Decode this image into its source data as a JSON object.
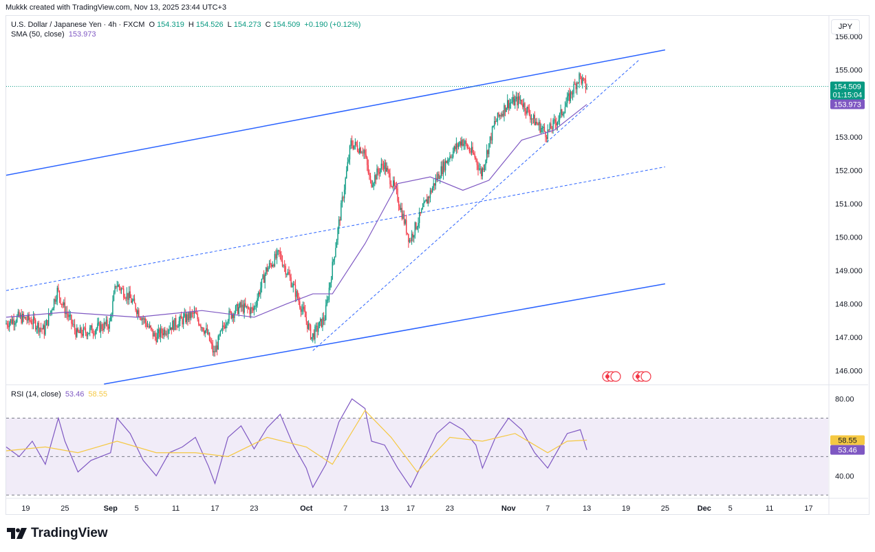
{
  "header": {
    "credit": "Mukkk created with TradingView.com, Nov 13, 2025 23:44 UTC+3"
  },
  "legend": {
    "symbol": "U.S. Dollar / Japanese Yen · 4h · FXCM",
    "o_label": "O",
    "o_value": "154.319",
    "h_label": "H",
    "h_value": "154.526",
    "l_label": "L",
    "l_value": "154.273",
    "c_label": "C",
    "c_value": "154.509",
    "change": "+0.190 (+0.12%)",
    "sma_label": "SMA (50, close)",
    "sma_value": "153.973",
    "rsi_label": "RSI (14, close)",
    "rsi_value": "53.46",
    "rsi_ma_value": "58.55"
  },
  "currency": "JPY",
  "price_badge": {
    "price": "154.509",
    "countdown": "01:15:04",
    "sma": "153.973"
  },
  "rsi_badges": {
    "ma": "58.55",
    "rsi": "53.46"
  },
  "footer": {
    "brand": "TradingView"
  },
  "colors": {
    "up": "#089981",
    "down": "#f23645",
    "sma": "#7e57c2",
    "trend": "#2962ff",
    "rsi": "#7e57c2",
    "rsi_ma": "#f5c842",
    "rsi_band": "#ede7f6"
  },
  "chart_data": [
    {
      "type": "candlestick",
      "yaxis": {
        "min": 145.6,
        "max": 156.6,
        "ticks": [
          "156.000",
          "155.000",
          "154.000",
          "153.000",
          "152.000",
          "151.000",
          "150.000",
          "149.000",
          "148.000",
          "147.000",
          "146.000"
        ],
        "tick_values": [
          156,
          155,
          154,
          153,
          152,
          151,
          150,
          149,
          148,
          147,
          146
        ]
      },
      "xaxis": {
        "start": "2025-08-16",
        "end": "2025-12-20",
        "ticks": [
          {
            "label": "19",
            "date": "2025-08-19"
          },
          {
            "label": "25",
            "date": "2025-08-25"
          },
          {
            "label": "Sep",
            "date": "2025-09-01"
          },
          {
            "label": "5",
            "date": "2025-09-05"
          },
          {
            "label": "11",
            "date": "2025-09-11"
          },
          {
            "label": "17",
            "date": "2025-09-17"
          },
          {
            "label": "23",
            "date": "2025-09-23"
          },
          {
            "label": "Oct",
            "date": "2025-10-01"
          },
          {
            "label": "7",
            "date": "2025-10-07"
          },
          {
            "label": "13",
            "date": "2025-10-13"
          },
          {
            "label": "17",
            "date": "2025-10-17"
          },
          {
            "label": "23",
            "date": "2025-10-23"
          },
          {
            "label": "Nov",
            "date": "2025-11-01"
          },
          {
            "label": "7",
            "date": "2025-11-07"
          },
          {
            "label": "13",
            "date": "2025-11-13"
          },
          {
            "label": "19",
            "date": "2025-11-19"
          },
          {
            "label": "25",
            "date": "2025-11-25"
          },
          {
            "label": "Dec",
            "date": "2025-12-01"
          },
          {
            "label": "5",
            "date": "2025-12-05"
          },
          {
            "label": "11",
            "date": "2025-12-11"
          },
          {
            "label": "17",
            "date": "2025-12-17"
          }
        ]
      },
      "price_path": [
        [
          "2025-08-16",
          147.4
        ],
        [
          "2025-08-18",
          147.6
        ],
        [
          "2025-08-20",
          147.5
        ],
        [
          "2025-08-22",
          147.2
        ],
        [
          "2025-08-24",
          148.4
        ],
        [
          "2025-08-25",
          147.9
        ],
        [
          "2025-08-27",
          147.1
        ],
        [
          "2025-08-29",
          147.2
        ],
        [
          "2025-09-01",
          147.4
        ],
        [
          "2025-09-02",
          148.6
        ],
        [
          "2025-09-04",
          148.2
        ],
        [
          "2025-09-06",
          147.6
        ],
        [
          "2025-09-08",
          147.0
        ],
        [
          "2025-09-10",
          147.3
        ],
        [
          "2025-09-12",
          147.5
        ],
        [
          "2025-09-14",
          147.7
        ],
        [
          "2025-09-16",
          147.1
        ],
        [
          "2025-09-17",
          146.5
        ],
        [
          "2025-09-19",
          147.6
        ],
        [
          "2025-09-21",
          147.9
        ],
        [
          "2025-09-23",
          147.8
        ],
        [
          "2025-09-25",
          149.0
        ],
        [
          "2025-09-27",
          149.5
        ],
        [
          "2025-09-29",
          148.6
        ],
        [
          "2025-10-01",
          147.6
        ],
        [
          "2025-10-02",
          147.0
        ],
        [
          "2025-10-04",
          147.6
        ],
        [
          "2025-10-06",
          150.2
        ],
        [
          "2025-10-08",
          152.8
        ],
        [
          "2025-10-10",
          152.6
        ],
        [
          "2025-10-11",
          151.6
        ],
        [
          "2025-10-13",
          152.2
        ],
        [
          "2025-10-15",
          151.3
        ],
        [
          "2025-10-17",
          149.9
        ],
        [
          "2025-10-19",
          150.8
        ],
        [
          "2025-10-21",
          151.7
        ],
        [
          "2025-10-23",
          152.4
        ],
        [
          "2025-10-25",
          152.9
        ],
        [
          "2025-10-27",
          152.4
        ],
        [
          "2025-10-28",
          151.9
        ],
        [
          "2025-10-30",
          153.4
        ],
        [
          "2025-11-01",
          154.0
        ],
        [
          "2025-11-03",
          154.1
        ],
        [
          "2025-11-05",
          153.5
        ],
        [
          "2025-11-07",
          153.1
        ],
        [
          "2025-11-09",
          153.6
        ],
        [
          "2025-11-10",
          154.0
        ],
        [
          "2025-11-12",
          154.8
        ],
        [
          "2025-11-13",
          154.51
        ]
      ],
      "sma_50": [
        [
          "2025-08-16",
          147.6
        ],
        [
          "2025-08-25",
          147.75
        ],
        [
          "2025-09-05",
          147.6
        ],
        [
          "2025-09-15",
          147.8
        ],
        [
          "2025-09-23",
          147.6
        ],
        [
          "2025-09-28",
          148.0
        ],
        [
          "2025-10-02",
          148.3
        ],
        [
          "2025-10-05",
          148.3
        ],
        [
          "2025-10-10",
          149.8
        ],
        [
          "2025-10-15",
          151.6
        ],
        [
          "2025-10-20",
          151.8
        ],
        [
          "2025-10-25",
          151.4
        ],
        [
          "2025-10-29",
          151.7
        ],
        [
          "2025-11-03",
          152.9
        ],
        [
          "2025-11-08",
          153.2
        ],
        [
          "2025-11-13",
          153.97
        ]
      ],
      "trendlines": [
        {
          "style": "solid",
          "points": [
            [
              "2025-08-16",
              151.85
            ],
            [
              "2025-11-25",
              155.6
            ]
          ]
        },
        {
          "style": "solid",
          "points": [
            [
              "2025-08-31",
              145.6
            ],
            [
              "2025-11-25",
              148.6
            ]
          ]
        },
        {
          "style": "dashed",
          "points": [
            [
              "2025-08-16",
              148.4
            ],
            [
              "2025-11-25",
              152.1
            ]
          ]
        },
        {
          "style": "dashed",
          "points": [
            [
              "2025-10-02",
              146.6
            ],
            [
              "2025-11-21",
              155.3
            ]
          ]
        }
      ],
      "last_price": 154.509
    },
    {
      "type": "line",
      "title": "RSI (14, close)",
      "yaxis": {
        "ticks": [
          "80.00",
          "40.00"
        ],
        "tick_values": [
          80,
          40
        ],
        "min": 29,
        "max": 87,
        "band": [
          30,
          70
        ],
        "midline": 50
      },
      "series": [
        {
          "name": "RSI",
          "values": [
            [
              "2025-08-16",
              55
            ],
            [
              "2025-08-18",
              50
            ],
            [
              "2025-08-20",
              58
            ],
            [
              "2025-08-22",
              46
            ],
            [
              "2025-08-24",
              70
            ],
            [
              "2025-08-25",
              58
            ],
            [
              "2025-08-27",
              42
            ],
            [
              "2025-08-29",
              48
            ],
            [
              "2025-09-01",
              52
            ],
            [
              "2025-09-02",
              70
            ],
            [
              "2025-09-04",
              62
            ],
            [
              "2025-09-06",
              48
            ],
            [
              "2025-09-08",
              40
            ],
            [
              "2025-09-10",
              52
            ],
            [
              "2025-09-12",
              55
            ],
            [
              "2025-09-14",
              60
            ],
            [
              "2025-09-16",
              45
            ],
            [
              "2025-09-17",
              36
            ],
            [
              "2025-09-19",
              60
            ],
            [
              "2025-09-21",
              66
            ],
            [
              "2025-09-23",
              54
            ],
            [
              "2025-09-25",
              65
            ],
            [
              "2025-09-27",
              72
            ],
            [
              "2025-09-29",
              56
            ],
            [
              "2025-10-01",
              44
            ],
            [
              "2025-10-02",
              34
            ],
            [
              "2025-10-04",
              46
            ],
            [
              "2025-10-06",
              68
            ],
            [
              "2025-10-08",
              80
            ],
            [
              "2025-10-10",
              75
            ],
            [
              "2025-10-11",
              58
            ],
            [
              "2025-10-13",
              56
            ],
            [
              "2025-10-15",
              44
            ],
            [
              "2025-10-17",
              34
            ],
            [
              "2025-10-19",
              48
            ],
            [
              "2025-10-21",
              62
            ],
            [
              "2025-10-23",
              68
            ],
            [
              "2025-10-25",
              64
            ],
            [
              "2025-10-27",
              56
            ],
            [
              "2025-10-28",
              44
            ],
            [
              "2025-10-30",
              60
            ],
            [
              "2025-11-01",
              70
            ],
            [
              "2025-11-03",
              64
            ],
            [
              "2025-11-05",
              52
            ],
            [
              "2025-11-07",
              44
            ],
            [
              "2025-11-09",
              56
            ],
            [
              "2025-11-10",
              62
            ],
            [
              "2025-11-12",
              64
            ],
            [
              "2025-11-13",
              53.46
            ]
          ]
        },
        {
          "name": "RSI MA",
          "values": [
            [
              "2025-08-16",
              53
            ],
            [
              "2025-08-22",
              55
            ],
            [
              "2025-08-27",
              52
            ],
            [
              "2025-09-02",
              58
            ],
            [
              "2025-09-08",
              52
            ],
            [
              "2025-09-14",
              52
            ],
            [
              "2025-09-19",
              50
            ],
            [
              "2025-09-25",
              60
            ],
            [
              "2025-10-01",
              55
            ],
            [
              "2025-10-05",
              46
            ],
            [
              "2025-10-10",
              74
            ],
            [
              "2025-10-14",
              60
            ],
            [
              "2025-10-18",
              42
            ],
            [
              "2025-10-23",
              60
            ],
            [
              "2025-10-28",
              58
            ],
            [
              "2025-11-02",
              62
            ],
            [
              "2025-11-07",
              52
            ],
            [
              "2025-11-10",
              58
            ],
            [
              "2025-11-13",
              58.55
            ]
          ]
        }
      ]
    }
  ]
}
